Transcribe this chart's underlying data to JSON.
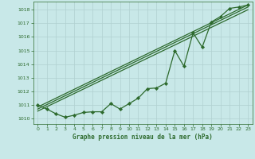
{
  "title": "Graphe pression niveau de la mer (hPa)",
  "bg_color": "#c8e8e8",
  "grid_color": "#b0d0d0",
  "line_color": "#2d6a2d",
  "marker_color": "#2d6a2d",
  "xlim": [
    -0.5,
    23.5
  ],
  "ylim": [
    1009.6,
    1018.6
  ],
  "xticks": [
    0,
    1,
    2,
    3,
    4,
    5,
    6,
    7,
    8,
    9,
    10,
    11,
    12,
    13,
    14,
    15,
    16,
    17,
    18,
    19,
    20,
    21,
    22,
    23
  ],
  "yticks": [
    1010,
    1011,
    1012,
    1013,
    1014,
    1015,
    1016,
    1017,
    1018
  ],
  "series_x": [
    0,
    1,
    2,
    3,
    4,
    5,
    6,
    7,
    8,
    9,
    10,
    11,
    12,
    13,
    14,
    15,
    16,
    17,
    18,
    19,
    20,
    21,
    22,
    23
  ],
  "series_y": [
    1011.0,
    1010.7,
    1010.35,
    1010.1,
    1010.25,
    1010.45,
    1010.5,
    1010.5,
    1011.1,
    1010.7,
    1011.1,
    1011.5,
    1012.2,
    1012.25,
    1012.6,
    1015.0,
    1013.85,
    1016.3,
    1015.25,
    1017.1,
    1017.5,
    1018.1,
    1018.2,
    1018.35
  ],
  "line1_x": [
    0,
    23
  ],
  "line1_y": [
    1010.85,
    1018.35
  ],
  "line2_x": [
    0,
    23
  ],
  "line2_y": [
    1010.7,
    1018.2
  ],
  "line3_x": [
    0,
    23
  ],
  "line3_y": [
    1010.55,
    1018.0
  ]
}
